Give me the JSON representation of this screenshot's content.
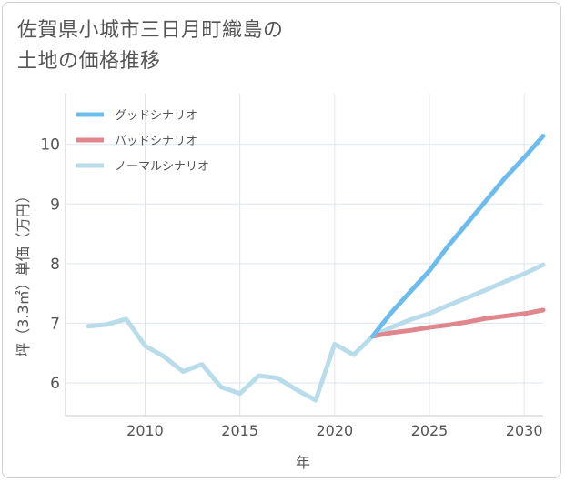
{
  "chart_data": {
    "type": "line",
    "title": "佐賀県小城市三日月町織島の土地の価格推移",
    "xlabel": "年",
    "ylabel": "坪（3.3㎡）単価（万円）",
    "xlim": [
      2005.8,
      2031
    ],
    "ylim": [
      5.45,
      10.85
    ],
    "xticks": [
      2010,
      2015,
      2020,
      2025,
      2030
    ],
    "yticks": [
      6,
      7,
      8,
      9,
      10
    ],
    "grid": true,
    "legend_position": "top-left",
    "series": [
      {
        "name": "グッドシナリオ",
        "color": "#6cbcee",
        "x": [
          2022,
          2023,
          2024,
          2025,
          2026,
          2027,
          2028,
          2029,
          2030,
          2031
        ],
        "y": [
          6.78,
          7.18,
          7.53,
          7.88,
          8.3,
          8.68,
          9.06,
          9.44,
          9.78,
          10.14
        ]
      },
      {
        "name": "バッドシナリオ",
        "color": "#e0868d",
        "x": [
          2022,
          2023,
          2024,
          2025,
          2026,
          2027,
          2028,
          2029,
          2030,
          2031
        ],
        "y": [
          6.78,
          6.84,
          6.88,
          6.93,
          6.97,
          7.02,
          7.08,
          7.12,
          7.16,
          7.22
        ]
      },
      {
        "name": "ノーマルシナリオ",
        "color": "#b9dcea",
        "x": [
          2007,
          2008,
          2009,
          2010,
          2011,
          2012,
          2013,
          2014,
          2015,
          2016,
          2017,
          2018,
          2019,
          2020,
          2021,
          2022,
          2023,
          2024,
          2025,
          2026,
          2027,
          2028,
          2029,
          2030,
          2031
        ],
        "y": [
          6.95,
          6.98,
          7.07,
          6.62,
          6.44,
          6.19,
          6.31,
          5.93,
          5.82,
          6.12,
          6.08,
          5.88,
          5.71,
          6.65,
          6.47,
          6.78,
          6.93,
          7.06,
          7.16,
          7.3,
          7.43,
          7.56,
          7.7,
          7.83,
          7.98
        ]
      }
    ]
  }
}
